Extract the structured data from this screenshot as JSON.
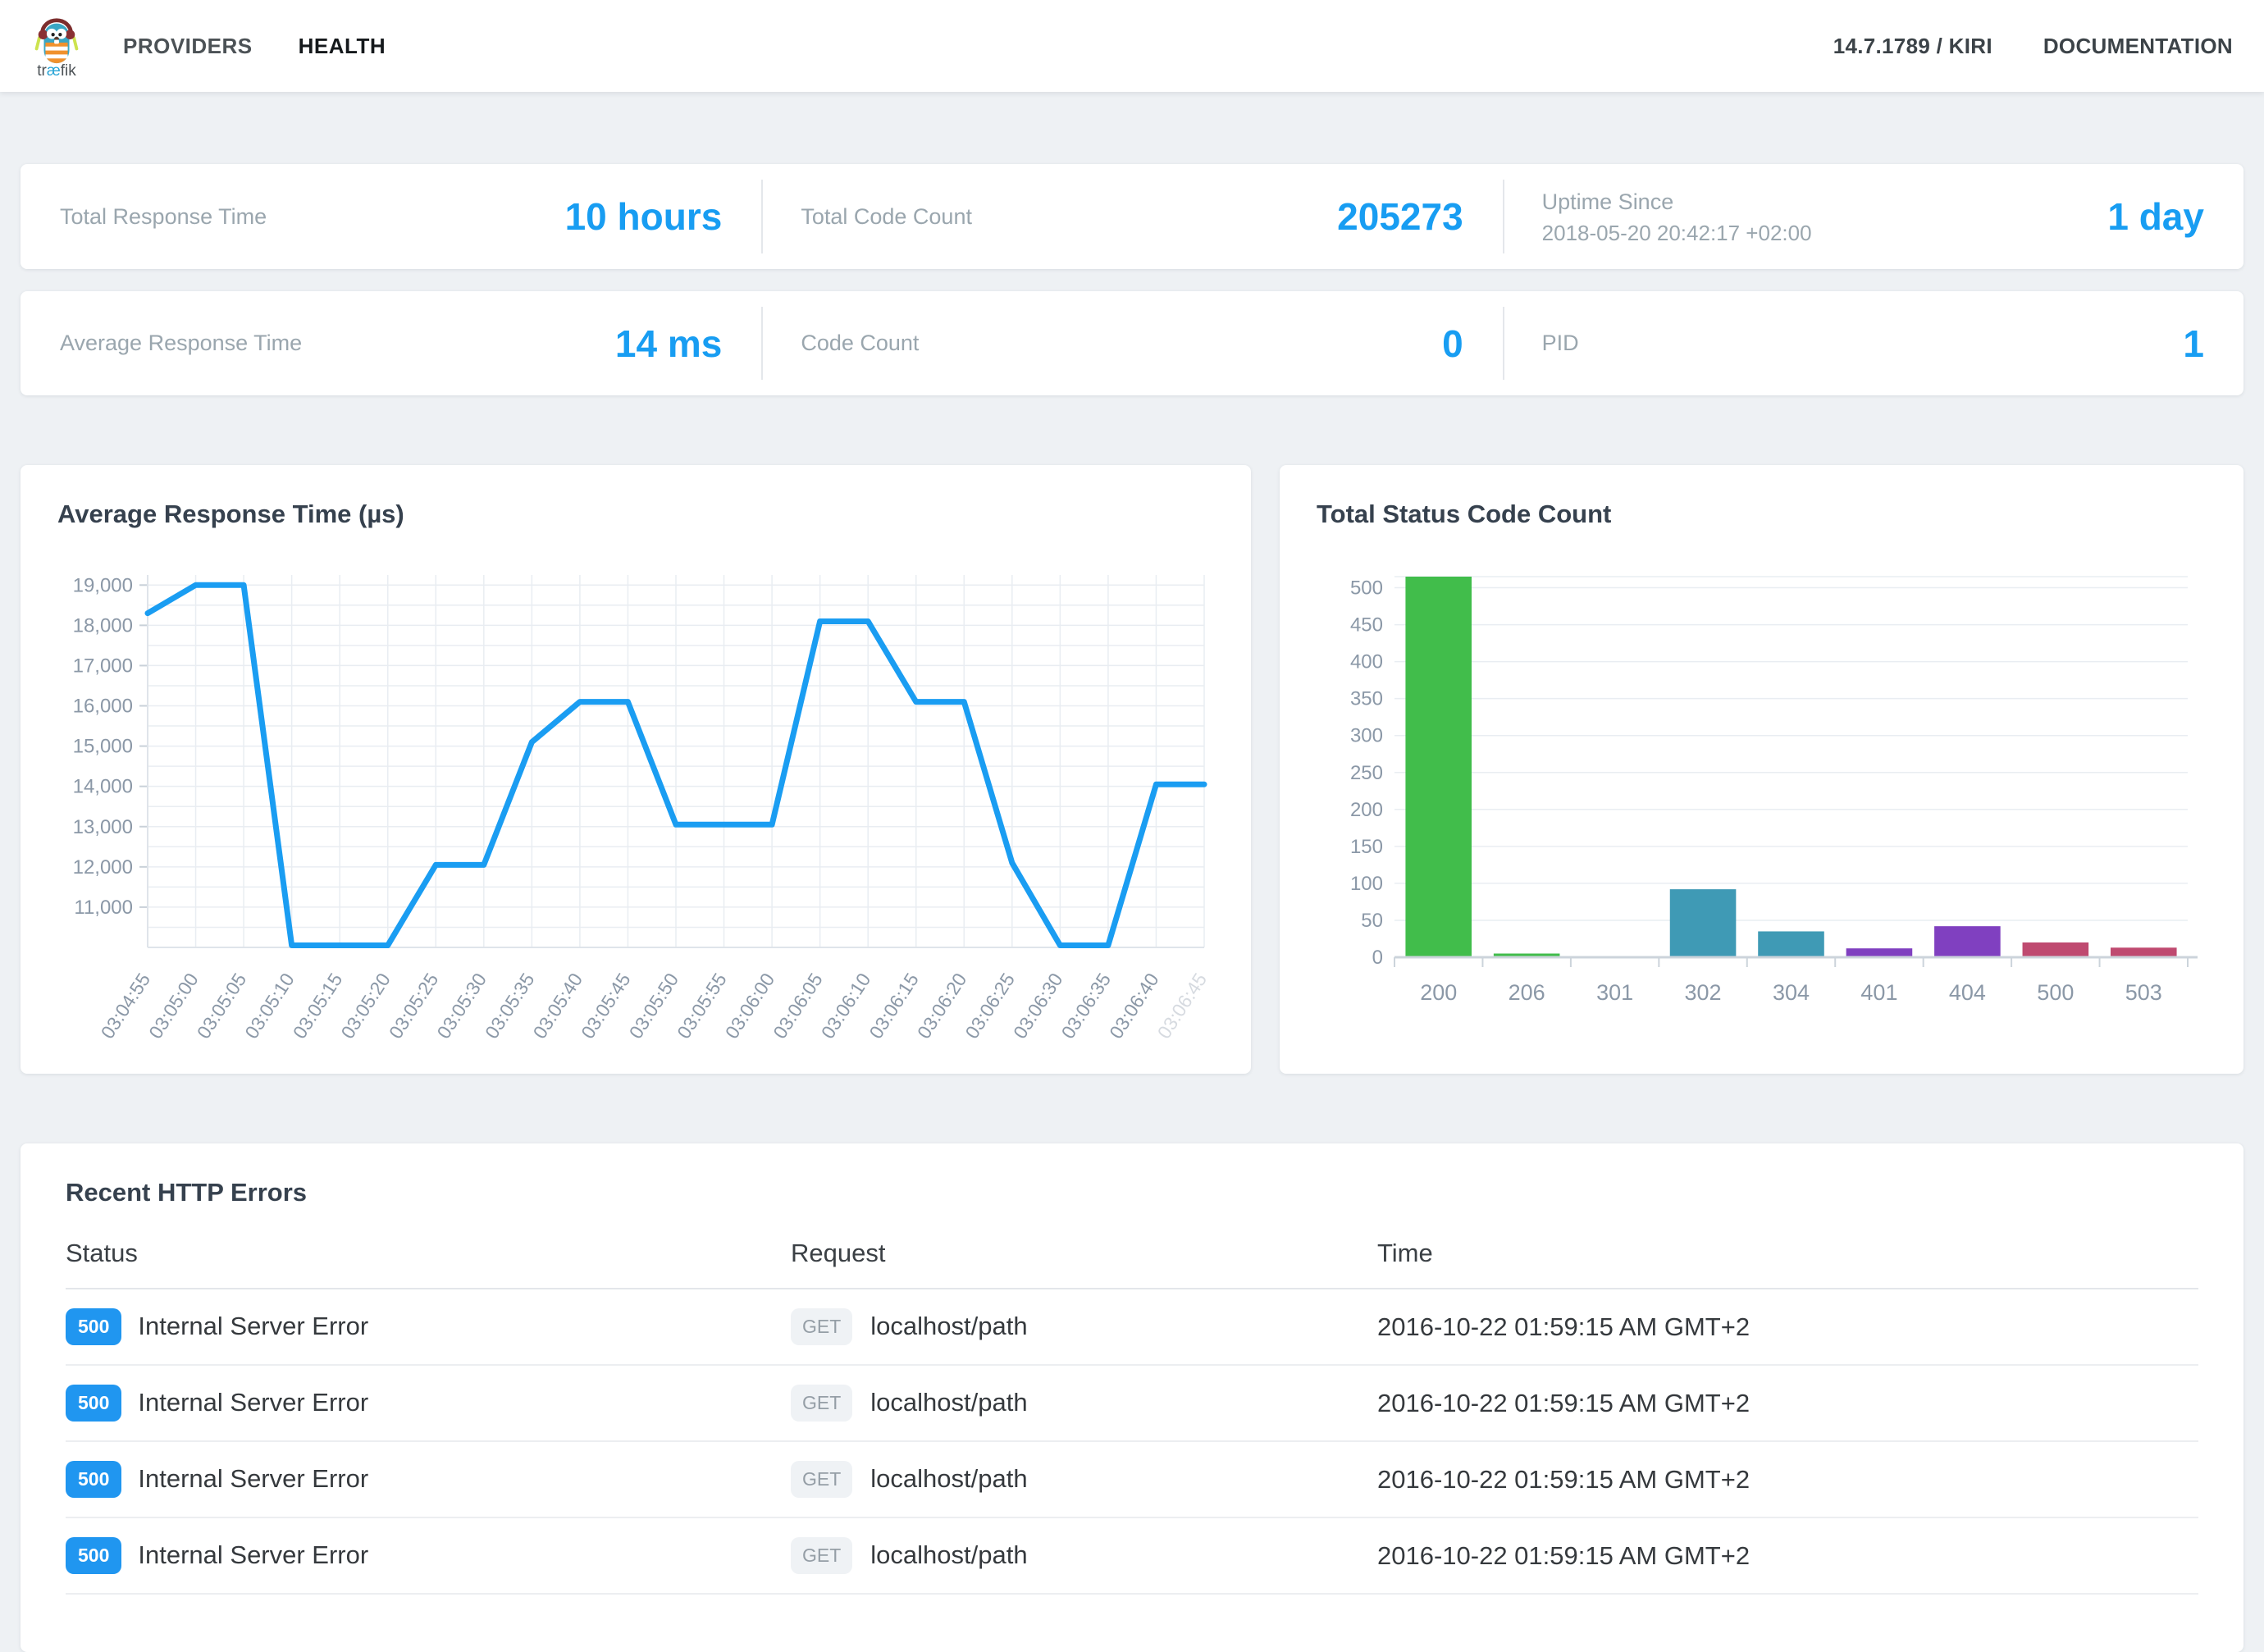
{
  "nav": {
    "logo": {
      "prefix": "tr",
      "ae": "æ",
      "suffix": "fik"
    },
    "items": [
      {
        "label": "PROVIDERS"
      },
      {
        "label": "HEALTH"
      }
    ],
    "version": "14.7.1789 / KIRI",
    "docs_label": "DOCUMENTATION"
  },
  "stats": {
    "row1": [
      {
        "label": "Total Response Time",
        "value": "10 hours"
      },
      {
        "label": "Total Code Count",
        "value": "205273"
      },
      {
        "label": "Uptime Since",
        "sublabel": "2018-05-20 20:42:17 +02:00",
        "value": "1 day"
      }
    ],
    "row2": [
      {
        "label": "Average Response Time",
        "value": "14 ms"
      },
      {
        "label": "Code Count",
        "value": "0"
      },
      {
        "label": "PID",
        "value": "1"
      }
    ]
  },
  "chart_data": [
    {
      "type": "line",
      "title": "Average Response Time (µs)",
      "x": [
        "03:04:55",
        "03:05:00",
        "03:05:05",
        "03:05:10",
        "03:05:15",
        "03:05:20",
        "03:05:25",
        "03:05:30",
        "03:05:35",
        "03:05:40",
        "03:05:45",
        "03:05:50",
        "03:05:55",
        "03:06:00",
        "03:06:05",
        "03:06:10",
        "03:06:15",
        "03:06:20",
        "03:06:25",
        "03:06:30",
        "03:06:35",
        "03:06:40",
        "03:06:45"
      ],
      "values": [
        18300,
        19000,
        19000,
        10050,
        10050,
        10050,
        12050,
        12050,
        15100,
        16100,
        16100,
        13050,
        13050,
        13050,
        18100,
        18100,
        16100,
        16100,
        12100,
        10050,
        10050,
        14050,
        14050
      ],
      "ylim": [
        10000,
        19250
      ],
      "ytick_step": 500,
      "ylabel_step": 1000,
      "ylabel_min": 11000,
      "ylabel_max": 19000,
      "grid": true,
      "line_color": "#1a9df2",
      "last_label_faded": true
    },
    {
      "type": "bar",
      "title": "Total Status Code Count",
      "categories": [
        "200",
        "206",
        "301",
        "302",
        "304",
        "401",
        "404",
        "500",
        "503"
      ],
      "values": [
        515,
        5,
        1,
        92,
        35,
        12,
        42,
        20,
        13
      ],
      "bar_colors": [
        "#41bd4b",
        "#41bd4b",
        "#3f9ab5",
        "#3f9ab5",
        "#3f9ab5",
        "#8040c0",
        "#8040c0",
        "#bf4a70",
        "#bf4a70"
      ],
      "ylim": [
        0,
        515
      ],
      "ytick_step": 50,
      "grid": true
    }
  ],
  "errors_table": {
    "title": "Recent HTTP Errors",
    "columns": [
      "Status",
      "Request",
      "Time"
    ],
    "rows": [
      {
        "status_code": "500",
        "status_text": "Internal Server Error",
        "method": "GET",
        "path": "localhost/path",
        "time": "2016-10-22 01:59:15 AM GMT+2"
      },
      {
        "status_code": "500",
        "status_text": "Internal Server Error",
        "method": "GET",
        "path": "localhost/path",
        "time": "2016-10-22 01:59:15 AM GMT+2"
      },
      {
        "status_code": "500",
        "status_text": "Internal Server Error",
        "method": "GET",
        "path": "localhost/path",
        "time": "2016-10-22 01:59:15 AM GMT+2"
      },
      {
        "status_code": "500",
        "status_text": "Internal Server Error",
        "method": "GET",
        "path": "localhost/path",
        "time": "2016-10-22 01:59:15 AM GMT+2"
      }
    ]
  },
  "colors": {
    "accent_blue": "#189df2",
    "green_2xx": "#41bd4b",
    "teal_3xx": "#3f9ab5",
    "purple_4xx": "#8040c0",
    "crimson_5xx": "#bf4a70",
    "axis_label": "#8b98a7",
    "gridline": "#e9edf2",
    "page_bg": "#eef1f4"
  }
}
